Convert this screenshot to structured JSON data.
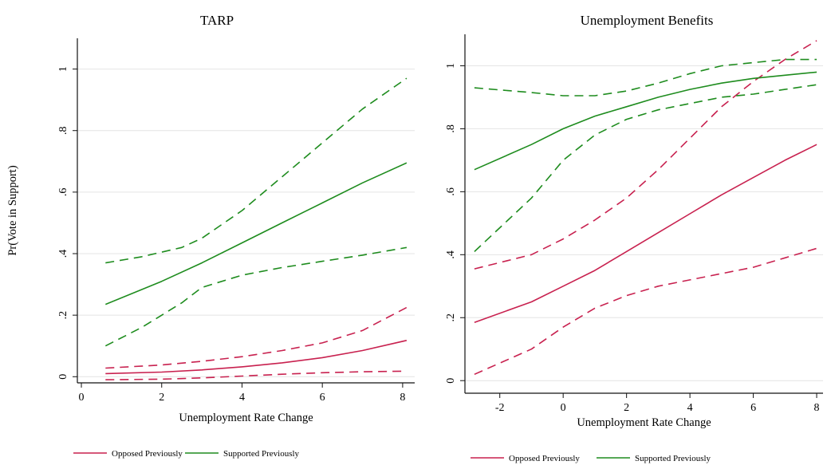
{
  "colors": {
    "opposed": "#c8214f",
    "supported": "#1e8c1e",
    "grid": "#e4e4e4",
    "axis": "#111111"
  },
  "chart_data": [
    {
      "type": "line",
      "title": "TARP",
      "xlabel": "Unemployment Rate Change",
      "ylabel": "Pr(Vote in Support)",
      "xlim": [
        -0.1,
        8.3
      ],
      "ylim": [
        -0.02,
        1.1
      ],
      "xticks": [
        0,
        2,
        4,
        6,
        8
      ],
      "yticks": [
        0,
        0.2,
        0.4,
        0.6,
        0.8,
        1
      ],
      "ytick_labels": [
        "0",
        ".2",
        ".4",
        ".6",
        ".8",
        "1"
      ],
      "grid": true,
      "legend_position": "bottom",
      "series": [
        {
          "name": "Opposed Previously",
          "color_key": "opposed",
          "style": "solid",
          "x": [
            0.6,
            2,
            3,
            4,
            5,
            6,
            7,
            8.1
          ],
          "y": [
            0.01,
            0.015,
            0.022,
            0.032,
            0.045,
            0.062,
            0.085,
            0.118
          ]
        },
        {
          "color_key": "opposed",
          "style": "dashed",
          "x": [
            0.6,
            2,
            3,
            4,
            5,
            6,
            7,
            8.1
          ],
          "y": [
            0.028,
            0.038,
            0.05,
            0.065,
            0.085,
            0.11,
            0.15,
            0.225
          ]
        },
        {
          "color_key": "opposed",
          "style": "dashed",
          "x": [
            0.6,
            2,
            3,
            4,
            5,
            6,
            7,
            8.1
          ],
          "y": [
            -0.01,
            -0.008,
            -0.004,
            0.002,
            0.008,
            0.013,
            0.016,
            0.018
          ]
        },
        {
          "name": "Supported Previously",
          "color_key": "supported",
          "style": "solid",
          "x": [
            0.6,
            2,
            3,
            4,
            5,
            6,
            7,
            8.1
          ],
          "y": [
            0.235,
            0.31,
            0.37,
            0.435,
            0.5,
            0.565,
            0.63,
            0.695
          ]
        },
        {
          "color_key": "supported",
          "style": "dashed",
          "x": [
            0.6,
            1.5,
            2.5,
            3,
            4,
            5,
            6,
            7,
            8.1
          ],
          "y": [
            0.37,
            0.39,
            0.42,
            0.45,
            0.54,
            0.65,
            0.76,
            0.87,
            0.97
          ]
        },
        {
          "color_key": "supported",
          "style": "dashed",
          "x": [
            0.6,
            1.5,
            2.5,
            3,
            4,
            5,
            6,
            7,
            8.1
          ],
          "y": [
            0.1,
            0.16,
            0.24,
            0.29,
            0.33,
            0.355,
            0.375,
            0.395,
            0.42
          ]
        }
      ]
    },
    {
      "type": "line",
      "title": "Unemployment Benefits",
      "xlabel": "Unemployment Rate Change",
      "ylabel": "",
      "xlim": [
        -3.1,
        8.2
      ],
      "ylim": [
        -0.04,
        1.1
      ],
      "xticks": [
        -2,
        0,
        2,
        4,
        6,
        8
      ],
      "yticks": [
        0,
        0.2,
        0.4,
        0.6,
        0.8,
        1
      ],
      "ytick_labels": [
        "0",
        ".2",
        ".4",
        ".6",
        ".8",
        "1"
      ],
      "grid": true,
      "legend_position": "bottom",
      "series": [
        {
          "name": "Opposed Previously",
          "color_key": "opposed",
          "style": "solid",
          "x": [
            -2.8,
            -1,
            0,
            1,
            2,
            3,
            4,
            5,
            6,
            7,
            8
          ],
          "y": [
            0.185,
            0.25,
            0.3,
            0.35,
            0.41,
            0.47,
            0.53,
            0.59,
            0.645,
            0.7,
            0.75
          ]
        },
        {
          "color_key": "opposed",
          "style": "dashed",
          "x": [
            -2.8,
            -1,
            0,
            1,
            2,
            3,
            4,
            5,
            6,
            7,
            8
          ],
          "y": [
            0.355,
            0.4,
            0.45,
            0.51,
            0.58,
            0.67,
            0.77,
            0.87,
            0.95,
            1.02,
            1.08
          ]
        },
        {
          "color_key": "opposed",
          "style": "dashed",
          "x": [
            -2.8,
            -1,
            0,
            1,
            2,
            3,
            4,
            5,
            6,
            7,
            8
          ],
          "y": [
            0.02,
            0.1,
            0.17,
            0.23,
            0.27,
            0.3,
            0.32,
            0.34,
            0.36,
            0.39,
            0.42
          ]
        },
        {
          "name": "Supported Previously",
          "color_key": "supported",
          "style": "solid",
          "x": [
            -2.8,
            -1,
            0,
            1,
            2,
            3,
            4,
            5,
            6,
            7,
            8
          ],
          "y": [
            0.67,
            0.75,
            0.8,
            0.84,
            0.87,
            0.9,
            0.925,
            0.945,
            0.96,
            0.97,
            0.98
          ]
        },
        {
          "color_key": "supported",
          "style": "dashed",
          "x": [
            -2.8,
            -1,
            0,
            1,
            2,
            3,
            4,
            5,
            6,
            7,
            8
          ],
          "y": [
            0.93,
            0.915,
            0.905,
            0.905,
            0.92,
            0.945,
            0.975,
            1.0,
            1.01,
            1.02,
            1.02
          ]
        },
        {
          "color_key": "supported",
          "style": "dashed",
          "x": [
            -2.8,
            -1,
            0,
            1,
            2,
            3,
            4,
            5,
            6,
            7,
            8
          ],
          "y": [
            0.41,
            0.58,
            0.7,
            0.78,
            0.83,
            0.86,
            0.88,
            0.9,
            0.91,
            0.925,
            0.94
          ]
        }
      ]
    }
  ]
}
